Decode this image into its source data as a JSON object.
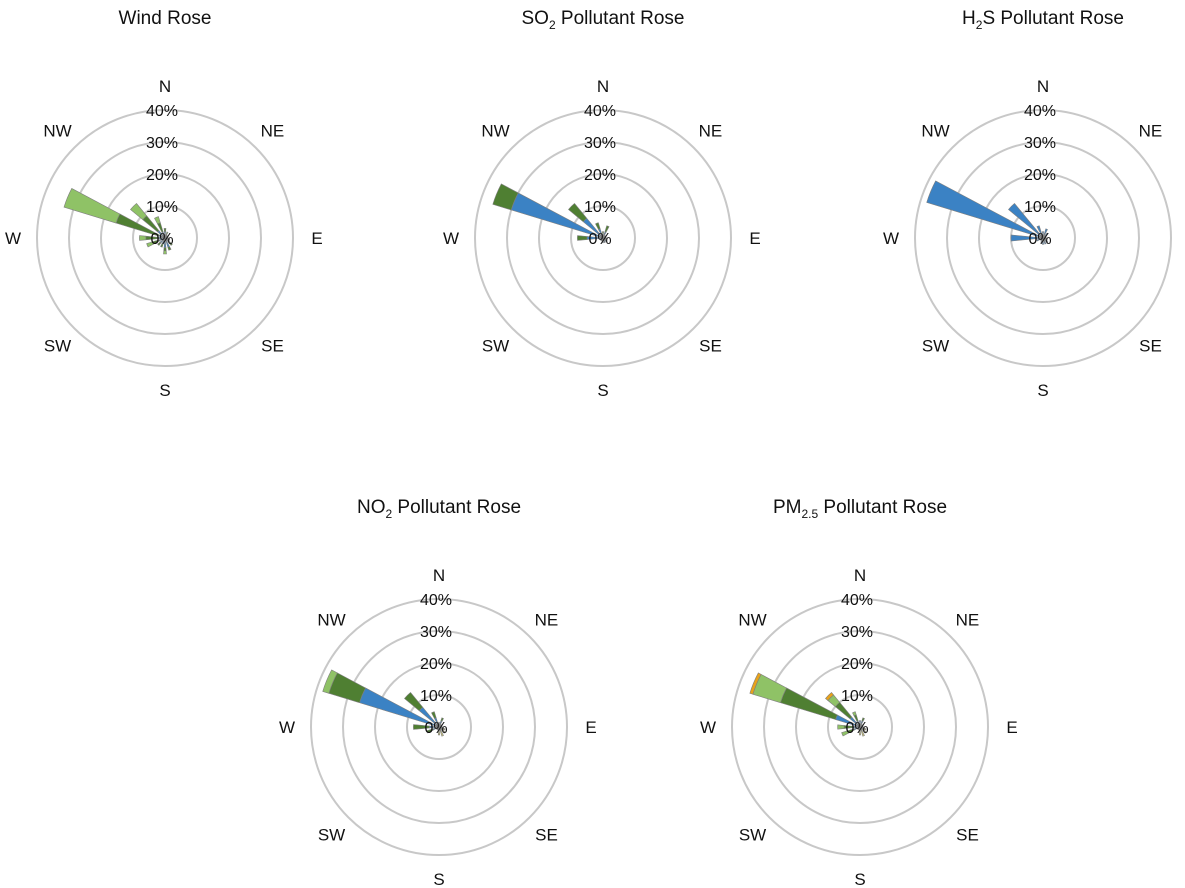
{
  "colors": {
    "blue": "#3b82c4",
    "dark_green": "#4f7f32",
    "light_green": "#8fc266",
    "khaki": "#c9c47a",
    "orange": "#e8a21a",
    "ring": "#c8c8c8"
  },
  "chart_data": [
    {
      "type": "polar-stacked-bar",
      "title_main": "Wind Rose",
      "title_sub": "",
      "title_tail": "",
      "rlim": [
        0,
        40
      ],
      "radial_ticks": [
        "0%",
        "10%",
        "20%",
        "30%",
        "40%"
      ],
      "directions": [
        "N",
        "NE",
        "E",
        "SE",
        "S",
        "SW",
        "W",
        "NW"
      ],
      "stacks": [
        {
          "deg": 0,
          "segments": [
            {
              "c": "blue",
              "v": 2
            },
            {
              "c": "dark_green",
              "v": 1
            }
          ]
        },
        {
          "deg": 22.5,
          "segments": [
            {
              "c": "blue",
              "v": 1
            },
            {
              "c": "light_green",
              "v": 1
            }
          ]
        },
        {
          "deg": 45,
          "segments": [
            {
              "c": "blue",
              "v": 1
            }
          ]
        },
        {
          "deg": 67.5,
          "segments": [
            {
              "c": "blue",
              "v": 1
            }
          ]
        },
        {
          "deg": 90,
          "segments": [
            {
              "c": "blue",
              "v": 1
            }
          ]
        },
        {
          "deg": 112.5,
          "segments": [
            {
              "c": "blue",
              "v": 1.5
            }
          ]
        },
        {
          "deg": 135,
          "segments": [
            {
              "c": "blue",
              "v": 2
            },
            {
              "c": "dark_green",
              "v": 1
            }
          ]
        },
        {
          "deg": 157.5,
          "segments": [
            {
              "c": "blue",
              "v": 3
            },
            {
              "c": "dark_green",
              "v": 1
            }
          ]
        },
        {
          "deg": 180,
          "segments": [
            {
              "c": "blue",
              "v": 3
            },
            {
              "c": "dark_green",
              "v": 1
            },
            {
              "c": "light_green",
              "v": 1
            }
          ]
        },
        {
          "deg": 202.5,
          "segments": [
            {
              "c": "blue",
              "v": 2
            },
            {
              "c": "dark_green",
              "v": 1
            }
          ]
        },
        {
          "deg": 225,
          "segments": [
            {
              "c": "blue",
              "v": 2
            },
            {
              "c": "dark_green",
              "v": 1
            }
          ]
        },
        {
          "deg": 247.5,
          "segments": [
            {
              "c": "blue",
              "v": 2
            },
            {
              "c": "dark_green",
              "v": 2
            },
            {
              "c": "light_green",
              "v": 2
            }
          ]
        },
        {
          "deg": 270,
          "segments": [
            {
              "c": "blue",
              "v": 2
            },
            {
              "c": "dark_green",
              "v": 4
            },
            {
              "c": "light_green",
              "v": 2
            }
          ]
        },
        {
          "deg": 292.5,
          "segments": [
            {
              "c": "blue",
              "v": 2
            },
            {
              "c": "dark_green",
              "v": 14
            },
            {
              "c": "light_green",
              "v": 17
            }
          ]
        },
        {
          "deg": 315,
          "segments": [
            {
              "c": "blue",
              "v": 3
            },
            {
              "c": "dark_green",
              "v": 6
            },
            {
              "c": "light_green",
              "v": 5
            }
          ]
        },
        {
          "deg": 337.5,
          "segments": [
            {
              "c": "blue",
              "v": 2
            },
            {
              "c": "dark_green",
              "v": 3
            },
            {
              "c": "light_green",
              "v": 2
            }
          ]
        }
      ]
    },
    {
      "type": "polar-stacked-bar",
      "title_main": "SO",
      "title_sub": "2",
      "title_tail": " Pollutant Rose",
      "rlim": [
        0,
        40
      ],
      "radial_ticks": [
        "0%",
        "10%",
        "20%",
        "30%",
        "40%"
      ],
      "directions": [
        "N",
        "NE",
        "E",
        "SE",
        "S",
        "SW",
        "W",
        "NW"
      ],
      "stacks": [
        {
          "deg": 0,
          "segments": [
            {
              "c": "blue",
              "v": 1
            },
            {
              "c": "dark_green",
              "v": 1
            }
          ]
        },
        {
          "deg": 22.5,
          "segments": [
            {
              "c": "blue",
              "v": 2
            },
            {
              "c": "dark_green",
              "v": 2
            }
          ]
        },
        {
          "deg": 45,
          "segments": [
            {
              "c": "blue",
              "v": 1
            }
          ]
        },
        {
          "deg": 67.5,
          "segments": [
            {
              "c": "blue",
              "v": 1
            }
          ]
        },
        {
          "deg": 90,
          "segments": [
            {
              "c": "blue",
              "v": 1
            }
          ]
        },
        {
          "deg": 112.5,
          "segments": [
            {
              "c": "blue",
              "v": 1
            }
          ]
        },
        {
          "deg": 135,
          "segments": [
            {
              "c": "blue",
              "v": 1.5
            }
          ]
        },
        {
          "deg": 157.5,
          "segments": [
            {
              "c": "blue",
              "v": 1.5
            }
          ]
        },
        {
          "deg": 180,
          "segments": [
            {
              "c": "blue",
              "v": 1.5
            }
          ]
        },
        {
          "deg": 202.5,
          "segments": [
            {
              "c": "blue",
              "v": 1
            }
          ]
        },
        {
          "deg": 225,
          "segments": [
            {
              "c": "blue",
              "v": 1
            }
          ]
        },
        {
          "deg": 247.5,
          "segments": [
            {
              "c": "blue",
              "v": 1
            }
          ]
        },
        {
          "deg": 270,
          "segments": [
            {
              "c": "blue",
              "v": 5
            },
            {
              "c": "dark_green",
              "v": 3
            }
          ]
        },
        {
          "deg": 292.5,
          "segments": [
            {
              "c": "blue",
              "v": 30
            },
            {
              "c": "dark_green",
              "v": 6
            }
          ]
        },
        {
          "deg": 315,
          "segments": [
            {
              "c": "blue",
              "v": 8
            },
            {
              "c": "dark_green",
              "v": 6
            }
          ]
        },
        {
          "deg": 337.5,
          "segments": [
            {
              "c": "blue",
              "v": 3
            },
            {
              "c": "dark_green",
              "v": 2
            }
          ]
        }
      ]
    },
    {
      "type": "polar-stacked-bar",
      "title_main": "H",
      "title_sub": "2",
      "title_tail": "S Pollutant Rose",
      "rlim": [
        0,
        40
      ],
      "radial_ticks": [
        "0%",
        "10%",
        "20%",
        "30%",
        "40%"
      ],
      "directions": [
        "N",
        "NE",
        "E",
        "SE",
        "S",
        "SW",
        "W",
        "NW"
      ],
      "stacks": [
        {
          "deg": 0,
          "segments": [
            {
              "c": "blue",
              "v": 2
            }
          ]
        },
        {
          "deg": 22.5,
          "segments": [
            {
              "c": "blue",
              "v": 3
            }
          ]
        },
        {
          "deg": 45,
          "segments": [
            {
              "c": "blue",
              "v": 2
            }
          ]
        },
        {
          "deg": 67.5,
          "segments": [
            {
              "c": "blue",
              "v": 1
            }
          ]
        },
        {
          "deg": 90,
          "segments": [
            {
              "c": "blue",
              "v": 1
            }
          ]
        },
        {
          "deg": 112.5,
          "segments": [
            {
              "c": "blue",
              "v": 1
            }
          ]
        },
        {
          "deg": 135,
          "segments": [
            {
              "c": "blue",
              "v": 2
            }
          ]
        },
        {
          "deg": 157.5,
          "segments": [
            {
              "c": "blue",
              "v": 2
            }
          ]
        },
        {
          "deg": 180,
          "segments": [
            {
              "c": "blue",
              "v": 2
            }
          ]
        },
        {
          "deg": 202.5,
          "segments": [
            {
              "c": "blue",
              "v": 1.5
            }
          ]
        },
        {
          "deg": 225,
          "segments": [
            {
              "c": "blue",
              "v": 1
            }
          ]
        },
        {
          "deg": 247.5,
          "segments": [
            {
              "c": "blue",
              "v": 2
            }
          ]
        },
        {
          "deg": 270,
          "segments": [
            {
              "c": "blue",
              "v": 10
            }
          ]
        },
        {
          "deg": 292.5,
          "segments": [
            {
              "c": "blue",
              "v": 38
            }
          ]
        },
        {
          "deg": 315,
          "segments": [
            {
              "c": "blue",
              "v": 14
            }
          ]
        },
        {
          "deg": 337.5,
          "segments": [
            {
              "c": "blue",
              "v": 4
            }
          ]
        }
      ]
    },
    {
      "type": "polar-stacked-bar",
      "title_main": "NO",
      "title_sub": "2",
      "title_tail": " Pollutant Rose",
      "rlim": [
        0,
        40
      ],
      "radial_ticks": [
        "0%",
        "10%",
        "20%",
        "30%",
        "40%"
      ],
      "directions": [
        "N",
        "NE",
        "E",
        "SE",
        "S",
        "SW",
        "W",
        "NW"
      ],
      "stacks": [
        {
          "deg": 0,
          "segments": [
            {
              "c": "blue",
              "v": 1.5
            }
          ]
        },
        {
          "deg": 22.5,
          "segments": [
            {
              "c": "blue",
              "v": 2
            },
            {
              "c": "dark_green",
              "v": 1
            }
          ]
        },
        {
          "deg": 45,
          "segments": [
            {
              "c": "blue",
              "v": 1
            }
          ]
        },
        {
          "deg": 67.5,
          "segments": [
            {
              "c": "blue",
              "v": 1
            }
          ]
        },
        {
          "deg": 90,
          "segments": [
            {
              "c": "blue",
              "v": 1
            }
          ]
        },
        {
          "deg": 112.5,
          "segments": [
            {
              "c": "blue",
              "v": 1
            },
            {
              "c": "khaki",
              "v": 1
            }
          ]
        },
        {
          "deg": 135,
          "segments": [
            {
              "c": "blue",
              "v": 1
            },
            {
              "c": "khaki",
              "v": 1.5
            }
          ]
        },
        {
          "deg": 157.5,
          "segments": [
            {
              "c": "blue",
              "v": 1
            },
            {
              "c": "khaki",
              "v": 2
            }
          ]
        },
        {
          "deg": 180,
          "segments": [
            {
              "c": "blue",
              "v": 1
            },
            {
              "c": "khaki",
              "v": 1.5
            }
          ]
        },
        {
          "deg": 202.5,
          "segments": [
            {
              "c": "blue",
              "v": 1
            }
          ]
        },
        {
          "deg": 225,
          "segments": [
            {
              "c": "blue",
              "v": 1
            }
          ]
        },
        {
          "deg": 247.5,
          "segments": [
            {
              "c": "blue",
              "v": 2
            },
            {
              "c": "dark_green",
              "v": 2
            }
          ]
        },
        {
          "deg": 270,
          "segments": [
            {
              "c": "blue",
              "v": 3
            },
            {
              "c": "dark_green",
              "v": 5
            }
          ]
        },
        {
          "deg": 292.5,
          "segments": [
            {
              "c": "blue",
              "v": 26
            },
            {
              "c": "dark_green",
              "v": 10
            },
            {
              "c": "light_green",
              "v": 2
            }
          ]
        },
        {
          "deg": 315,
          "segments": [
            {
              "c": "blue",
              "v": 8
            },
            {
              "c": "dark_green",
              "v": 6
            }
          ]
        },
        {
          "deg": 337.5,
          "segments": [
            {
              "c": "blue",
              "v": 3
            },
            {
              "c": "dark_green",
              "v": 2
            }
          ]
        }
      ]
    },
    {
      "type": "polar-stacked-bar",
      "title_main": "PM",
      "title_sub": "2.5",
      "title_tail": " Pollutant Rose",
      "rlim": [
        0,
        40
      ],
      "radial_ticks": [
        "0%",
        "10%",
        "20%",
        "30%",
        "40%"
      ],
      "directions": [
        "N",
        "NE",
        "E",
        "SE",
        "S",
        "SW",
        "W",
        "NW"
      ],
      "stacks": [
        {
          "deg": 0,
          "segments": [
            {
              "c": "blue",
              "v": 2
            }
          ]
        },
        {
          "deg": 22.5,
          "segments": [
            {
              "c": "blue",
              "v": 2
            },
            {
              "c": "dark_green",
              "v": 1
            }
          ]
        },
        {
          "deg": 45,
          "segments": [
            {
              "c": "blue",
              "v": 1
            }
          ]
        },
        {
          "deg": 67.5,
          "segments": [
            {
              "c": "blue",
              "v": 1
            }
          ]
        },
        {
          "deg": 90,
          "segments": [
            {
              "c": "blue",
              "v": 1
            }
          ]
        },
        {
          "deg": 112.5,
          "segments": [
            {
              "c": "blue",
              "v": 1
            },
            {
              "c": "khaki",
              "v": 1
            }
          ]
        },
        {
          "deg": 135,
          "segments": [
            {
              "c": "blue",
              "v": 1
            },
            {
              "c": "khaki",
              "v": 1.5
            }
          ]
        },
        {
          "deg": 157.5,
          "segments": [
            {
              "c": "blue",
              "v": 1
            },
            {
              "c": "khaki",
              "v": 2
            }
          ]
        },
        {
          "deg": 180,
          "segments": [
            {
              "c": "blue",
              "v": 1
            },
            {
              "c": "khaki",
              "v": 1.5
            }
          ]
        },
        {
          "deg": 202.5,
          "segments": [
            {
              "c": "blue",
              "v": 1
            }
          ]
        },
        {
          "deg": 225,
          "segments": [
            {
              "c": "blue",
              "v": 1
            }
          ]
        },
        {
          "deg": 247.5,
          "segments": [
            {
              "c": "blue",
              "v": 2
            },
            {
              "c": "dark_green",
              "v": 2
            },
            {
              "c": "light_green",
              "v": 2
            }
          ]
        },
        {
          "deg": 270,
          "segments": [
            {
              "c": "blue",
              "v": 2
            },
            {
              "c": "dark_green",
              "v": 3
            },
            {
              "c": "light_green",
              "v": 2
            }
          ]
        },
        {
          "deg": 292.5,
          "segments": [
            {
              "c": "blue",
              "v": 8
            },
            {
              "c": "dark_green",
              "v": 18
            },
            {
              "c": "light_green",
              "v": 9
            },
            {
              "c": "orange",
              "v": 1
            }
          ]
        },
        {
          "deg": 315,
          "segments": [
            {
              "c": "blue",
              "v": 4
            },
            {
              "c": "dark_green",
              "v": 6
            },
            {
              "c": "light_green",
              "v": 3
            },
            {
              "c": "orange",
              "v": 1
            }
          ]
        },
        {
          "deg": 337.5,
          "segments": [
            {
              "c": "blue",
              "v": 2
            },
            {
              "c": "dark_green",
              "v": 2
            },
            {
              "c": "light_green",
              "v": 1
            }
          ]
        }
      ]
    }
  ]
}
